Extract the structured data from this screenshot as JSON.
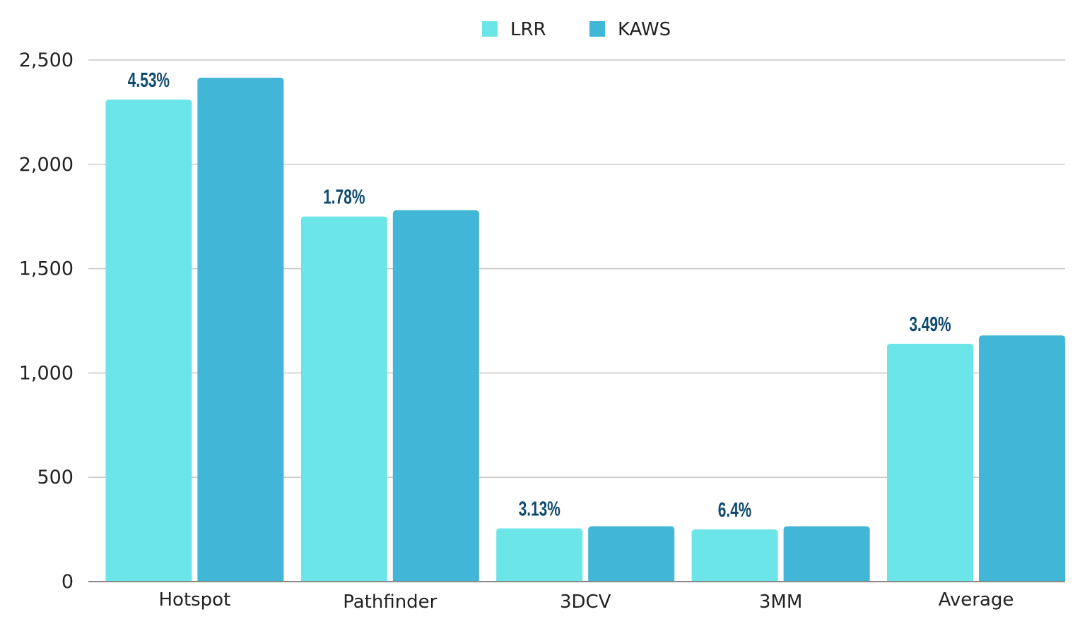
{
  "chart_data": {
    "type": "bar",
    "categories": [
      "Hotspot",
      "Pathfinder",
      "3DCV",
      "3MM",
      "Average"
    ],
    "series": [
      {
        "name": "LRR",
        "color": "#6ce5e8",
        "values": [
          2310,
          1750,
          255,
          250,
          1140
        ]
      },
      {
        "name": "KAWS",
        "color": "#41b6d6",
        "values": [
          2415,
          1780,
          265,
          265,
          1180
        ]
      }
    ],
    "annotations": [
      "4.53%",
      "1.78%",
      "3.13%",
      "6.4%",
      "3.49%"
    ],
    "ylim": [
      0,
      2500
    ],
    "yticks": [
      0,
      500,
      1000,
      1500,
      2000,
      2500
    ],
    "ytick_labels": [
      "0",
      "500",
      "1,000",
      "1,500",
      "2,000",
      "2,500"
    ],
    "grid": true,
    "legend_position": "top-center",
    "colors": {
      "gridline": "#c8c8c8",
      "axis": "#888888",
      "annotation": "#0d4a6e"
    }
  }
}
